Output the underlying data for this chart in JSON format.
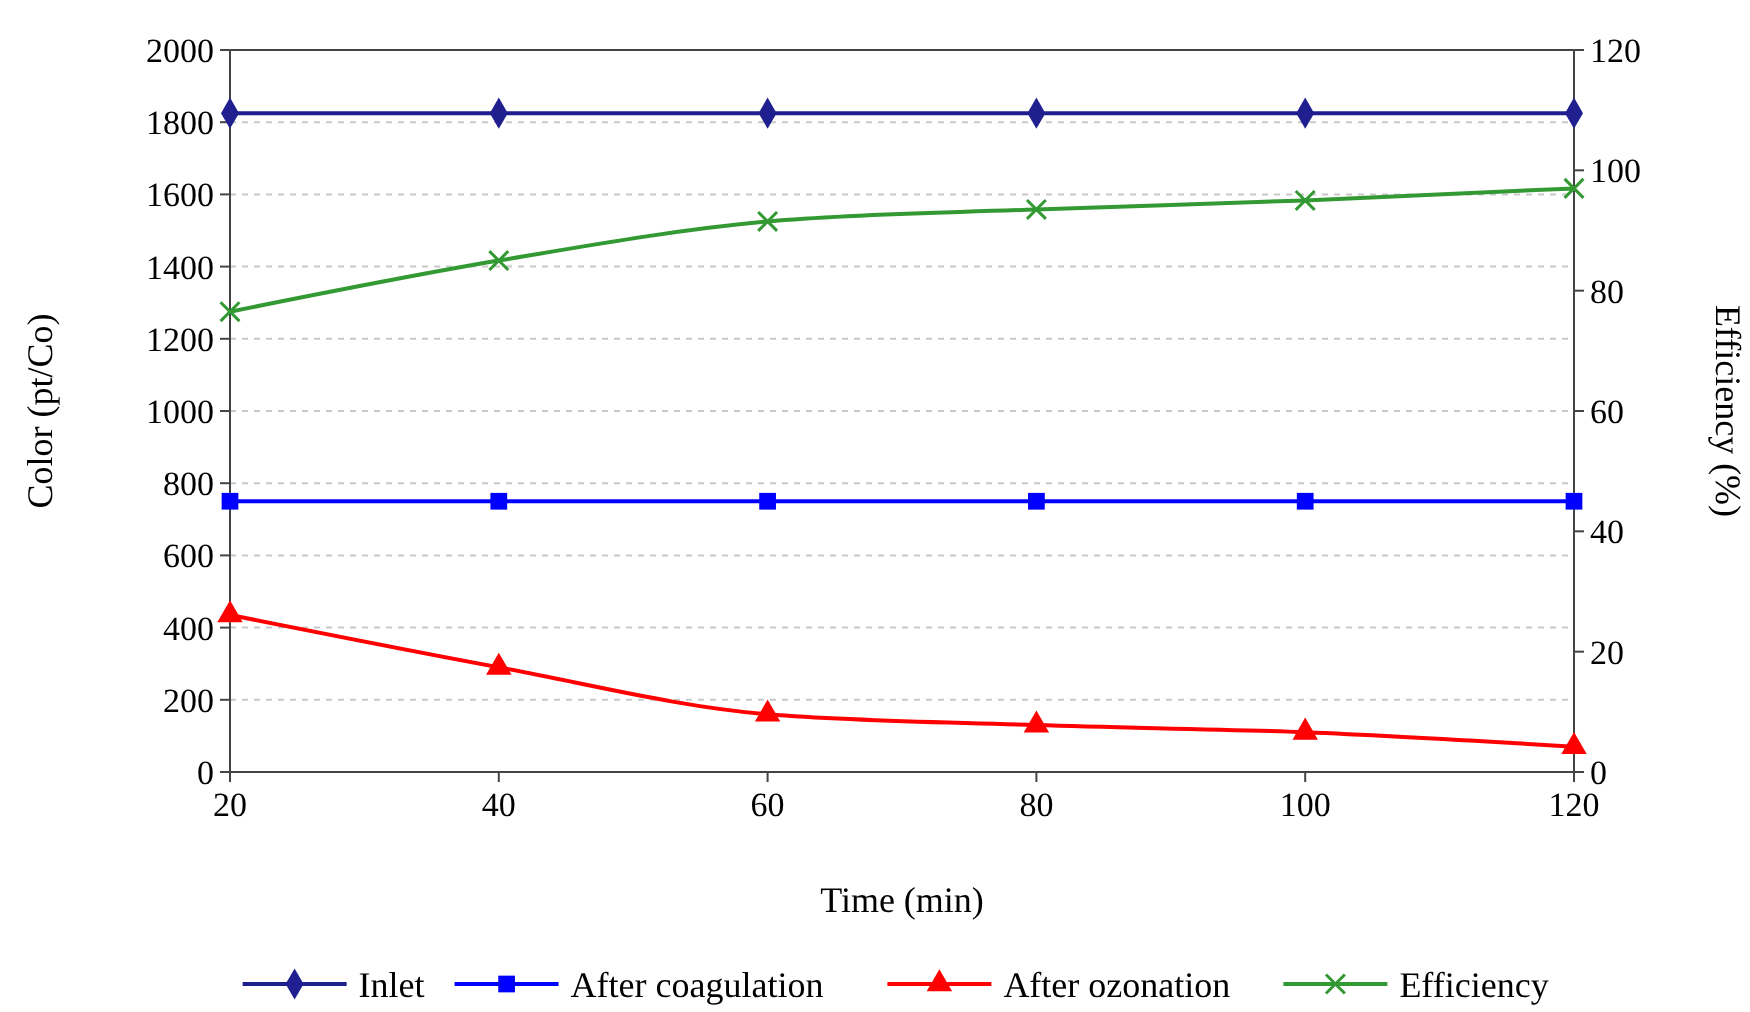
{
  "chart_data": {
    "type": "line",
    "xlabel": "Time (min)",
    "ylabel": "Color (pt/Co)",
    "y2label": "Efficiency (%)",
    "x": [
      20,
      40,
      60,
      80,
      100,
      120
    ],
    "xlim": [
      20,
      120
    ],
    "xticks": [
      20,
      40,
      60,
      80,
      100,
      120
    ],
    "ylim": [
      0,
      2000
    ],
    "yticks": [
      0,
      200,
      400,
      600,
      800,
      1000,
      1200,
      1400,
      1600,
      1800,
      2000
    ],
    "y2lim": [
      0,
      120
    ],
    "y2ticks": [
      0,
      20,
      40,
      60,
      80,
      100,
      120
    ],
    "grid": "y",
    "legend": "bottom",
    "line_style": "solid",
    "series": [
      {
        "name": "Inlet",
        "color": "#1f1f8f",
        "marker": "diamond",
        "values": [
          1825,
          1825,
          1825,
          1825,
          1825,
          1825
        ]
      },
      {
        "name": "After coagulation",
        "color": "#0000ff",
        "marker": "square",
        "values": [
          750,
          750,
          750,
          750,
          750,
          750
        ]
      },
      {
        "name": "After ozonation",
        "color": "#ff0000",
        "marker": "triangle",
        "values": [
          435,
          290,
          160,
          130,
          110,
          70
        ]
      },
      {
        "name": "Efficiency",
        "color": "#339933",
        "marker": "cross",
        "axis": "y2",
        "values": [
          76.5,
          85,
          91.5,
          93.5,
          95,
          97
        ]
      }
    ]
  }
}
